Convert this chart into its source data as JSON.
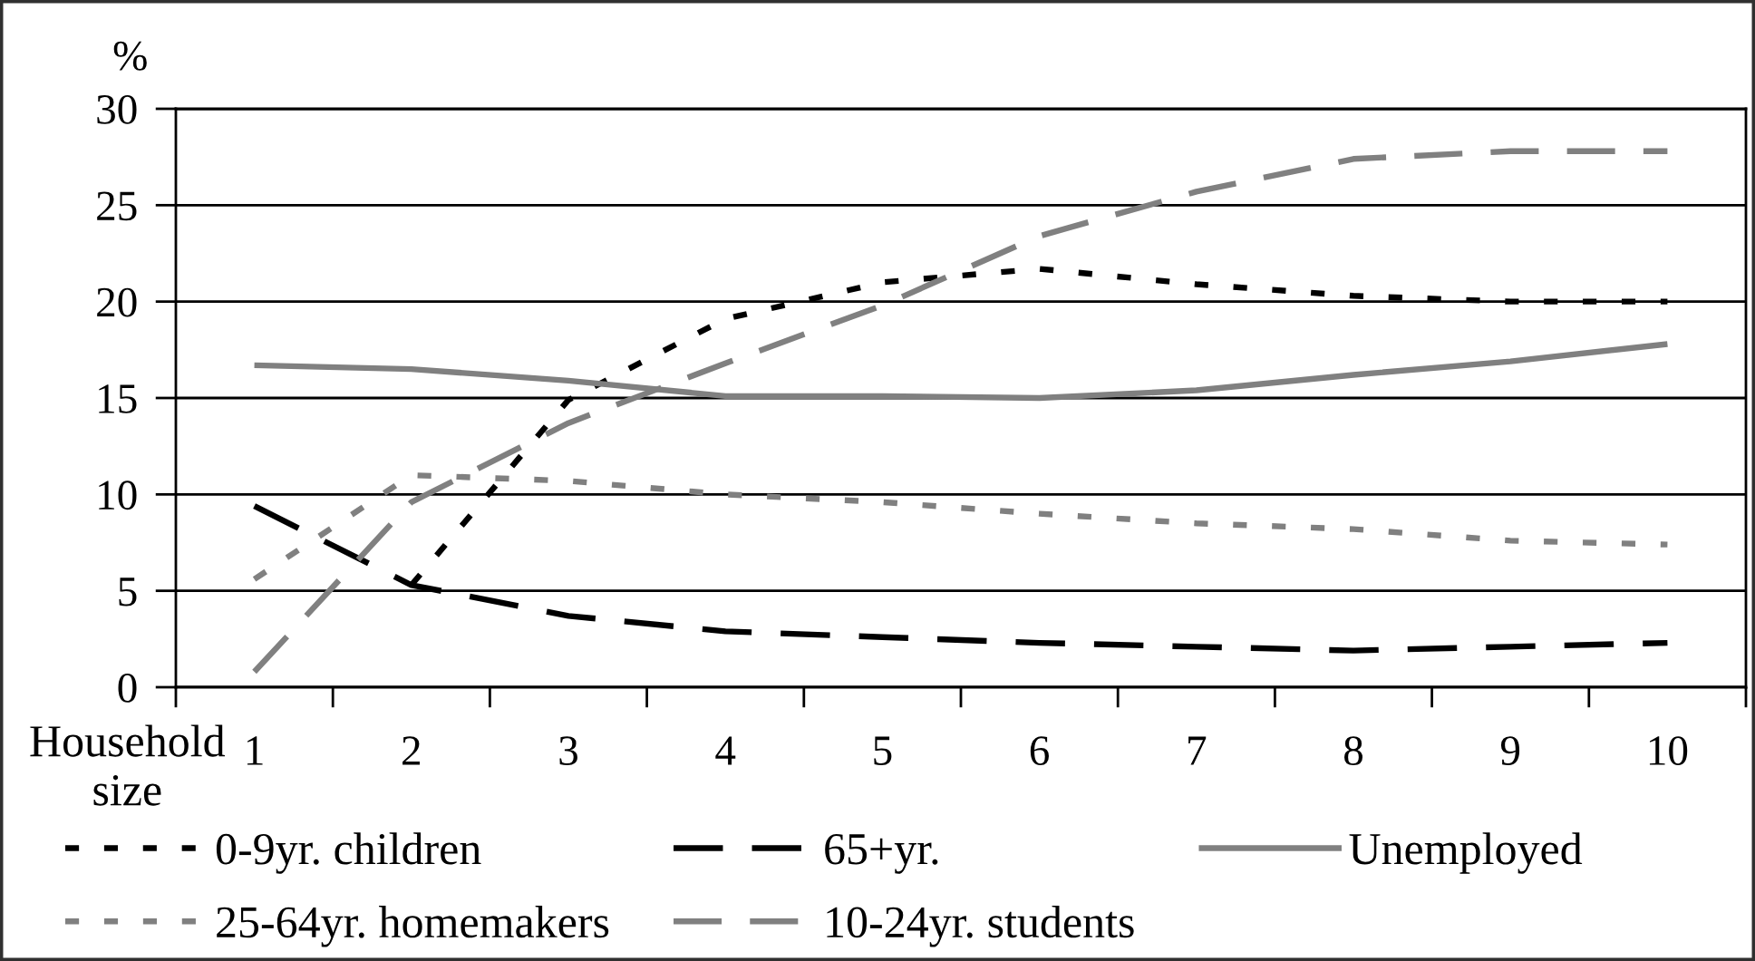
{
  "chart_data": {
    "type": "line",
    "ylabel": "%",
    "xlabel": "Household size",
    "categories": [
      "1",
      "2",
      "3",
      "4",
      "5",
      "6",
      "7",
      "8",
      "9",
      "10"
    ],
    "ylim": [
      0,
      30
    ],
    "yticks": [
      0,
      5,
      10,
      15,
      20,
      25,
      30
    ],
    "grid": "y",
    "legend": "bottom",
    "series": [
      {
        "name": "0-9yr. children",
        "color": "#000000",
        "line_style": "dotted",
        "values": [
          null,
          5.3,
          14.9,
          19.1,
          21.0,
          21.7,
          20.9,
          20.3,
          20.0,
          20.0
        ]
      },
      {
        "name": "65+yr.",
        "color": "#000000",
        "line_style": "dashed",
        "values": [
          9.4,
          5.3,
          3.7,
          2.9,
          2.6,
          2.3,
          2.1,
          1.9,
          2.1,
          2.3
        ]
      },
      {
        "name": "Unemployed",
        "color": "#808080",
        "line_style": "solid",
        "values": [
          16.7,
          16.5,
          15.9,
          15.1,
          15.1,
          15.0,
          15.4,
          16.2,
          16.9,
          17.8
        ]
      },
      {
        "name": "25-64yr. homemakers",
        "color": "#808080",
        "line_style": "dotted",
        "values": [
          5.6,
          11.0,
          10.7,
          10.0,
          9.6,
          9.0,
          8.5,
          8.2,
          7.6,
          7.4
        ]
      },
      {
        "name": "10-24yr. students",
        "color": "#808080",
        "line_style": "dashed",
        "values": [
          0.8,
          9.6,
          13.7,
          16.8,
          19.8,
          23.4,
          25.7,
          27.4,
          27.8,
          27.8
        ]
      }
    ]
  }
}
